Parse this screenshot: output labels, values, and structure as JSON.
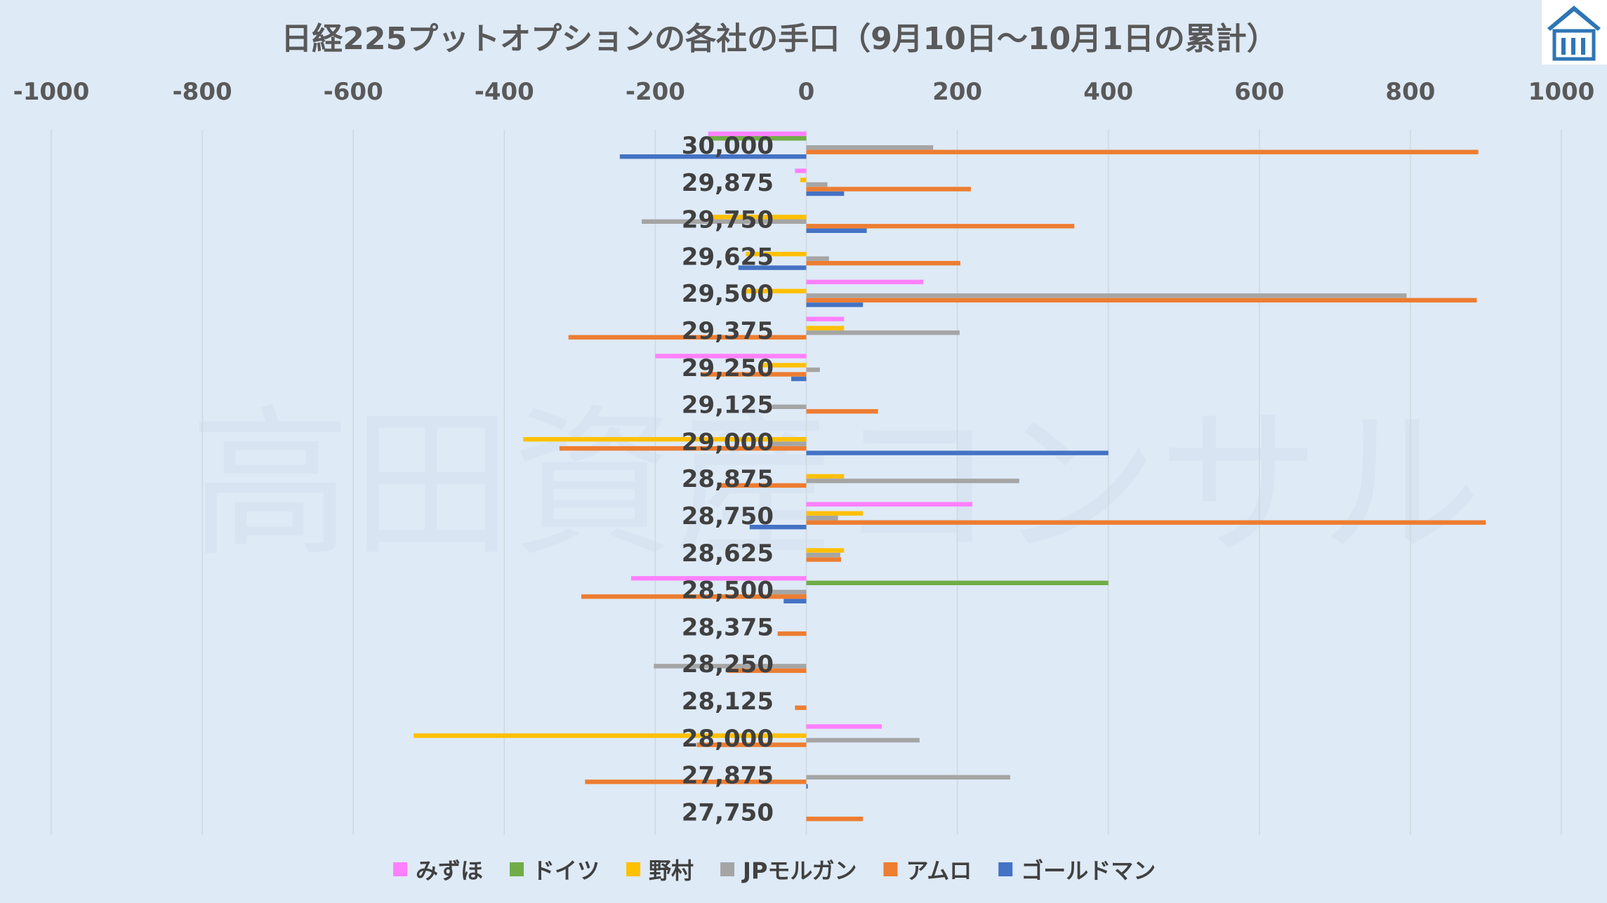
{
  "chart_data": {
    "type": "bar",
    "orientation": "horizontal",
    "title": "日経225プットオプションの各社の手口（9月10日～10月1日の累計）",
    "watermark": "高田資産コンサル",
    "x_ticks": [
      "-1000",
      "-800",
      "-600",
      "-400",
      "-200",
      "0",
      "200",
      "400",
      "600",
      "800",
      "1000"
    ],
    "xlim": [
      -1000,
      1000
    ],
    "xaxis_position": "top",
    "grid": true,
    "legend_position": "bottom",
    "categories": [
      "30,000",
      "29,875",
      "29,750",
      "29,625",
      "29,500",
      "29,375",
      "29,250",
      "29,125",
      "29,000",
      "28,875",
      "28,750",
      "28,625",
      "28,500",
      "28,375",
      "28,250",
      "28,125",
      "28,000",
      "27,875",
      "27,750"
    ],
    "series": [
      {
        "name": "みずほ",
        "color": "#ff80ff",
        "values": [
          -130,
          -15,
          0,
          0,
          155,
          50,
          -200,
          0,
          0,
          0,
          220,
          0,
          -232,
          0,
          0,
          0,
          100,
          0,
          0
        ]
      },
      {
        "name": "ドイツ",
        "color": "#70ad47",
        "values": [
          -130,
          0,
          0,
          0,
          0,
          0,
          0,
          0,
          0,
          0,
          0,
          0,
          400,
          0,
          0,
          0,
          0,
          0,
          0
        ]
      },
      {
        "name": "野村",
        "color": "#ffc000",
        "values": [
          0,
          -8,
          -130,
          -80,
          -80,
          50,
          -60,
          0,
          -375,
          50,
          75,
          50,
          0,
          0,
          0,
          0,
          -520,
          0,
          0
        ]
      },
      {
        "name": "JPモルガン",
        "color": "#a5a5a5",
        "values": [
          168,
          28,
          -218,
          30,
          795,
          203,
          18,
          -45,
          -50,
          282,
          42,
          45,
          -45,
          0,
          -202,
          0,
          150,
          270,
          0
        ]
      },
      {
        "name": "アムロ",
        "color": "#ed7d31",
        "values": [
          890,
          218,
          355,
          204,
          888,
          -315,
          -140,
          95,
          -327,
          -115,
          900,
          46,
          -298,
          -38,
          -105,
          -15,
          -145,
          -293,
          75
        ]
      },
      {
        "name": "ゴールドマン",
        "color": "#4472c4",
        "values": [
          -247,
          50,
          80,
          -90,
          75,
          0,
          -20,
          0,
          400,
          0,
          -75,
          0,
          -30,
          0,
          0,
          0,
          0,
          2,
          0
        ]
      }
    ]
  },
  "logo": {
    "name": "company-logo",
    "bg": "#ffffff",
    "fg": "#2e75b6"
  }
}
